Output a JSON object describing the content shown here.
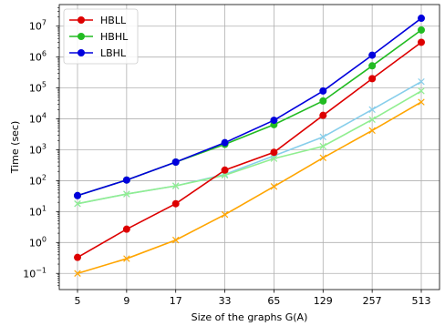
{
  "chart_data": {
    "type": "line",
    "xlabel": "Size of the graphs G(A)",
    "ylabel": "Time (sec)",
    "x_scale": "categorical",
    "y_scale": "log",
    "ylim": [
      0.03,
      50000000
    ],
    "grid": true,
    "legend_position": "top-left",
    "categories": [
      "5",
      "9",
      "17",
      "33",
      "65",
      "129",
      "257",
      "513"
    ],
    "y_ticks": [
      {
        "value": 0.1,
        "mantissa": "10",
        "exp": "−1"
      },
      {
        "value": 1,
        "mantissa": "10",
        "exp": "0"
      },
      {
        "value": 10,
        "mantissa": "10",
        "exp": "1"
      },
      {
        "value": 100,
        "mantissa": "10",
        "exp": "2"
      },
      {
        "value": 1000,
        "mantissa": "10",
        "exp": "3"
      },
      {
        "value": 10000,
        "mantissa": "10",
        "exp": "4"
      },
      {
        "value": 100000,
        "mantissa": "10",
        "exp": "5"
      },
      {
        "value": 1000000,
        "mantissa": "10",
        "exp": "6"
      },
      {
        "value": 10000000,
        "mantissa": "10",
        "exp": "7"
      }
    ],
    "series": [
      {
        "name": "HBLL",
        "color": "#dd0000",
        "marker": "circle",
        "in_legend": true,
        "values": [
          0.33,
          2.7,
          18,
          220,
          830,
          13000,
          200000,
          3000000
        ]
      },
      {
        "name": "HBHL",
        "color": "#22bb22",
        "marker": "circle",
        "in_legend": true,
        "values": [
          33,
          105,
          400,
          1500,
          6500,
          38000,
          520000,
          7500000
        ]
      },
      {
        "name": "LBHL",
        "color": "#0000dd",
        "marker": "circle",
        "in_legend": true,
        "values": [
          33,
          105,
          400,
          1700,
          9000,
          80000,
          1150000,
          18000000
        ]
      },
      {
        "color": "#87ceeb",
        "marker": "x",
        "in_legend": false,
        "values": [
          18,
          37,
          68,
          160,
          640,
          2600,
          20000,
          160000
        ]
      },
      {
        "color": "#90ee90",
        "marker": "x",
        "in_legend": false,
        "values": [
          18,
          37,
          68,
          150,
          520,
          1300,
          9500,
          80000
        ]
      },
      {
        "color": "#ffa500",
        "marker": "x",
        "in_legend": false,
        "values": [
          0.1,
          0.3,
          1.2,
          8,
          65,
          550,
          4200,
          35000
        ]
      }
    ]
  }
}
